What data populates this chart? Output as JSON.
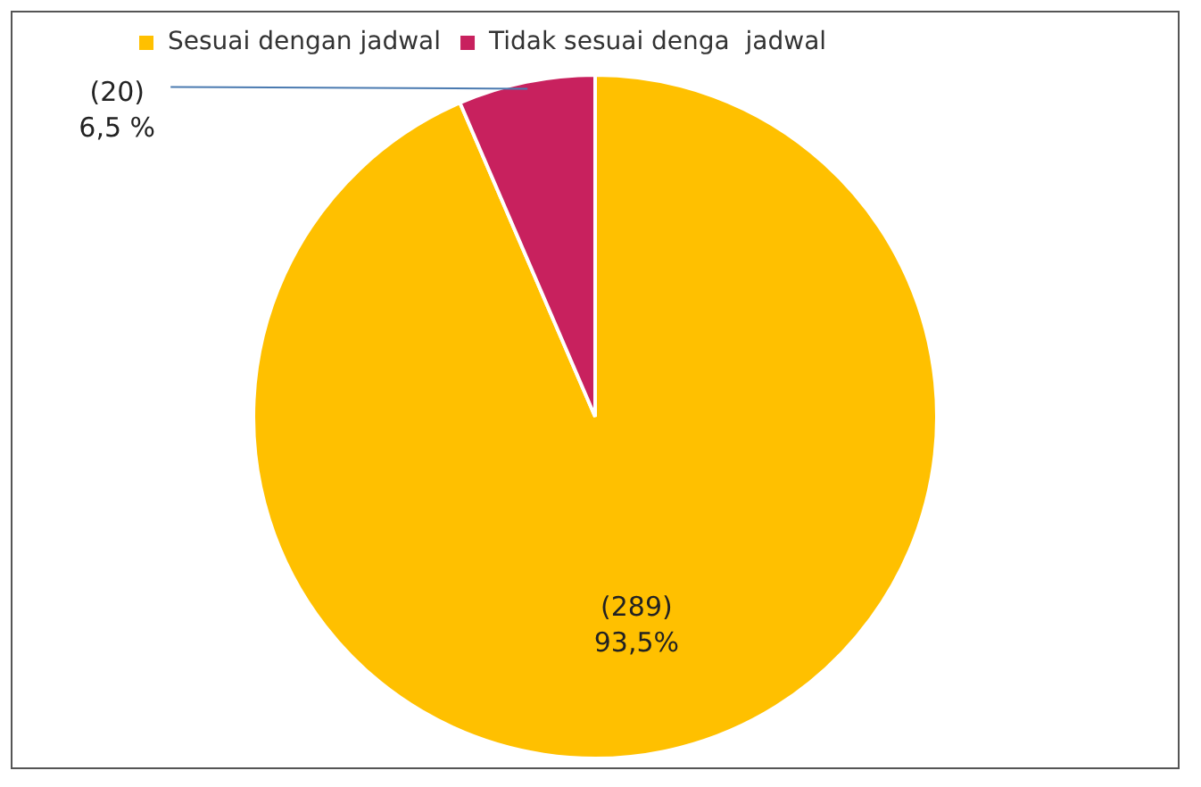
{
  "chart_data": {
    "type": "pie",
    "categories": [
      "Sesuai dengan jadwal",
      "Tidak sesuai denga  jadwal"
    ],
    "values": [
      289,
      20
    ],
    "colors": [
      "#ffc000",
      "#c8215e"
    ],
    "value_labels": [
      "(289)\n93,5%",
      "(20)\n6,5 %"
    ],
    "legend": "top"
  }
}
